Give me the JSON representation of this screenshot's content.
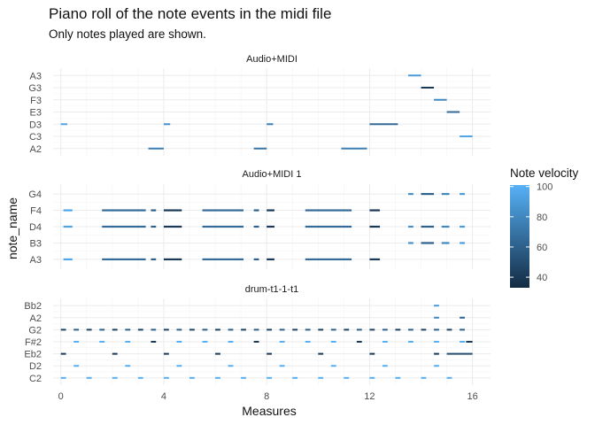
{
  "chart_data": {
    "type": "piano-roll",
    "title": "Piano roll of the note events in the midi file",
    "subtitle": "Only notes played are shown.",
    "xlabel": "Measures",
    "ylabel": "note_name",
    "xlim": [
      -0.3,
      16.7
    ],
    "xticks": [
      0,
      4,
      8,
      12,
      16
    ],
    "grid": true,
    "legend": {
      "title": "Note velocity",
      "position": "right",
      "range": [
        33,
        101
      ],
      "ticks": [
        40,
        60,
        80,
        100
      ],
      "color_low": "#132b43",
      "color_high": "#56b1f7"
    },
    "facets": [
      {
        "name": "Audio+MIDI",
        "notes": [
          "A2",
          "C3",
          "D3",
          "E3",
          "F3",
          "G3",
          "A3"
        ],
        "events": [
          {
            "note": "D3",
            "start": 0.0,
            "end": 0.25,
            "velocity": 95
          },
          {
            "note": "D3",
            "start": 4.0,
            "end": 4.25,
            "velocity": 85
          },
          {
            "note": "D3",
            "start": 8.0,
            "end": 8.25,
            "velocity": 75
          },
          {
            "note": "D3",
            "start": 12.0,
            "end": 13.1,
            "velocity": 65
          },
          {
            "note": "A2",
            "start": 3.4,
            "end": 4.0,
            "velocity": 75
          },
          {
            "note": "A2",
            "start": 7.5,
            "end": 8.0,
            "velocity": 70
          },
          {
            "note": "A2",
            "start": 10.9,
            "end": 11.9,
            "velocity": 75
          },
          {
            "note": "A3",
            "start": 13.5,
            "end": 14.0,
            "velocity": 90
          },
          {
            "note": "G3",
            "start": 14.0,
            "end": 14.5,
            "velocity": 40
          },
          {
            "note": "F3",
            "start": 14.5,
            "end": 15.0,
            "velocity": 80
          },
          {
            "note": "E3",
            "start": 15.0,
            "end": 15.5,
            "velocity": 65
          },
          {
            "note": "C3",
            "start": 15.5,
            "end": 16.0,
            "velocity": 95
          }
        ]
      },
      {
        "name": "Audio+MIDI 1",
        "notes": [
          "A3",
          "B3",
          "D4",
          "F4",
          "G4"
        ],
        "events": [
          {
            "note": "A3",
            "start": 0.1,
            "end": 0.45,
            "velocity": 95
          },
          {
            "note": "A3",
            "start": 1.6,
            "end": 3.3,
            "velocity": 65
          },
          {
            "note": "A3",
            "start": 3.5,
            "end": 3.7,
            "velocity": 60
          },
          {
            "note": "A3",
            "start": 4.0,
            "end": 4.7,
            "velocity": 40
          },
          {
            "note": "A3",
            "start": 5.5,
            "end": 7.1,
            "velocity": 65
          },
          {
            "note": "A3",
            "start": 7.5,
            "end": 7.7,
            "velocity": 60
          },
          {
            "note": "A3",
            "start": 8.0,
            "end": 8.3,
            "velocity": 40
          },
          {
            "note": "A3",
            "start": 9.5,
            "end": 11.3,
            "velocity": 65
          },
          {
            "note": "A3",
            "start": 12.0,
            "end": 12.4,
            "velocity": 40
          },
          {
            "note": "D4",
            "start": 0.1,
            "end": 0.45,
            "velocity": 95
          },
          {
            "note": "D4",
            "start": 1.6,
            "end": 3.3,
            "velocity": 65
          },
          {
            "note": "D4",
            "start": 3.5,
            "end": 3.7,
            "velocity": 60
          },
          {
            "note": "D4",
            "start": 4.0,
            "end": 4.7,
            "velocity": 40
          },
          {
            "note": "D4",
            "start": 5.5,
            "end": 7.1,
            "velocity": 65
          },
          {
            "note": "D4",
            "start": 7.5,
            "end": 7.7,
            "velocity": 60
          },
          {
            "note": "D4",
            "start": 8.0,
            "end": 8.3,
            "velocity": 40
          },
          {
            "note": "D4",
            "start": 9.5,
            "end": 11.3,
            "velocity": 65
          },
          {
            "note": "D4",
            "start": 12.0,
            "end": 12.4,
            "velocity": 40
          },
          {
            "note": "D4",
            "start": 13.5,
            "end": 13.7,
            "velocity": 85
          },
          {
            "note": "D4",
            "start": 14.0,
            "end": 14.5,
            "velocity": 60
          },
          {
            "note": "D4",
            "start": 14.8,
            "end": 15.1,
            "velocity": 80
          },
          {
            "note": "D4",
            "start": 15.5,
            "end": 15.7,
            "velocity": 90
          },
          {
            "note": "F4",
            "start": 0.1,
            "end": 0.45,
            "velocity": 95
          },
          {
            "note": "F4",
            "start": 1.6,
            "end": 3.3,
            "velocity": 65
          },
          {
            "note": "F4",
            "start": 3.5,
            "end": 3.7,
            "velocity": 60
          },
          {
            "note": "F4",
            "start": 4.0,
            "end": 4.7,
            "velocity": 40
          },
          {
            "note": "F4",
            "start": 5.5,
            "end": 7.1,
            "velocity": 65
          },
          {
            "note": "F4",
            "start": 7.5,
            "end": 7.7,
            "velocity": 60
          },
          {
            "note": "F4",
            "start": 8.0,
            "end": 8.3,
            "velocity": 40
          },
          {
            "note": "F4",
            "start": 9.5,
            "end": 11.3,
            "velocity": 65
          },
          {
            "note": "F4",
            "start": 12.0,
            "end": 12.4,
            "velocity": 40
          },
          {
            "note": "B3",
            "start": 13.5,
            "end": 13.7,
            "velocity": 85
          },
          {
            "note": "B3",
            "start": 14.0,
            "end": 14.5,
            "velocity": 60
          },
          {
            "note": "B3",
            "start": 14.8,
            "end": 15.1,
            "velocity": 80
          },
          {
            "note": "B3",
            "start": 15.5,
            "end": 15.7,
            "velocity": 90
          },
          {
            "note": "G4",
            "start": 13.5,
            "end": 13.7,
            "velocity": 85
          },
          {
            "note": "G4",
            "start": 14.0,
            "end": 14.5,
            "velocity": 60
          },
          {
            "note": "G4",
            "start": 14.8,
            "end": 15.1,
            "velocity": 80
          },
          {
            "note": "G4",
            "start": 15.5,
            "end": 15.7,
            "velocity": 90
          }
        ]
      },
      {
        "name": "drum-t1-1-t1",
        "notes": [
          "C2",
          "D2",
          "Eb2",
          "F#2",
          "G2",
          "A2",
          "Bb2"
        ],
        "events": [
          {
            "note": "C2",
            "start": 0.0,
            "end": 0.2,
            "velocity": 100
          },
          {
            "note": "C2",
            "start": 1.0,
            "end": 1.2,
            "velocity": 100
          },
          {
            "note": "C2",
            "start": 2.0,
            "end": 2.2,
            "velocity": 100
          },
          {
            "note": "C2",
            "start": 3.0,
            "end": 3.2,
            "velocity": 100
          },
          {
            "note": "C2",
            "start": 4.0,
            "end": 4.2,
            "velocity": 100
          },
          {
            "note": "C2",
            "start": 5.0,
            "end": 5.2,
            "velocity": 100
          },
          {
            "note": "C2",
            "start": 6.0,
            "end": 6.2,
            "velocity": 100
          },
          {
            "note": "C2",
            "start": 7.0,
            "end": 7.2,
            "velocity": 100
          },
          {
            "note": "C2",
            "start": 8.0,
            "end": 8.2,
            "velocity": 100
          },
          {
            "note": "C2",
            "start": 9.0,
            "end": 9.2,
            "velocity": 100
          },
          {
            "note": "C2",
            "start": 10.0,
            "end": 10.2,
            "velocity": 100
          },
          {
            "note": "C2",
            "start": 11.0,
            "end": 11.2,
            "velocity": 100
          },
          {
            "note": "C2",
            "start": 12.0,
            "end": 12.2,
            "velocity": 100
          },
          {
            "note": "C2",
            "start": 13.0,
            "end": 13.2,
            "velocity": 100
          },
          {
            "note": "C2",
            "start": 14.0,
            "end": 14.2,
            "velocity": 100
          },
          {
            "note": "C2",
            "start": 15.0,
            "end": 15.2,
            "velocity": 100
          },
          {
            "note": "D2",
            "start": 0.5,
            "end": 0.7,
            "velocity": 100
          },
          {
            "note": "D2",
            "start": 2.5,
            "end": 2.7,
            "velocity": 100
          },
          {
            "note": "D2",
            "start": 4.5,
            "end": 4.7,
            "velocity": 100
          },
          {
            "note": "D2",
            "start": 6.5,
            "end": 6.7,
            "velocity": 100
          },
          {
            "note": "D2",
            "start": 8.5,
            "end": 8.7,
            "velocity": 100
          },
          {
            "note": "D2",
            "start": 10.5,
            "end": 10.7,
            "velocity": 100
          },
          {
            "note": "D2",
            "start": 12.5,
            "end": 12.7,
            "velocity": 100
          },
          {
            "note": "D2",
            "start": 14.5,
            "end": 14.7,
            "velocity": 100
          },
          {
            "note": "Eb2",
            "start": 0.0,
            "end": 0.2,
            "velocity": 40
          },
          {
            "note": "Eb2",
            "start": 2.0,
            "end": 2.2,
            "velocity": 40
          },
          {
            "note": "Eb2",
            "start": 4.0,
            "end": 4.2,
            "velocity": 40
          },
          {
            "note": "Eb2",
            "start": 6.0,
            "end": 6.2,
            "velocity": 40
          },
          {
            "note": "Eb2",
            "start": 8.0,
            "end": 8.2,
            "velocity": 40
          },
          {
            "note": "Eb2",
            "start": 10.0,
            "end": 10.2,
            "velocity": 40
          },
          {
            "note": "Eb2",
            "start": 12.0,
            "end": 12.2,
            "velocity": 40
          },
          {
            "note": "Eb2",
            "start": 14.5,
            "end": 14.7,
            "velocity": 40
          },
          {
            "note": "Eb2",
            "start": 15.0,
            "end": 16.0,
            "velocity": 50
          },
          {
            "note": "F#2",
            "start": 0.5,
            "end": 0.7,
            "velocity": 100
          },
          {
            "note": "F#2",
            "start": 1.5,
            "end": 1.7,
            "velocity": 100
          },
          {
            "note": "F#2",
            "start": 2.5,
            "end": 2.7,
            "velocity": 100
          },
          {
            "note": "F#2",
            "start": 3.5,
            "end": 3.7,
            "velocity": 40
          },
          {
            "note": "F#2",
            "start": 4.5,
            "end": 4.7,
            "velocity": 100
          },
          {
            "note": "F#2",
            "start": 5.5,
            "end": 5.7,
            "velocity": 100
          },
          {
            "note": "F#2",
            "start": 6.5,
            "end": 6.7,
            "velocity": 100
          },
          {
            "note": "F#2",
            "start": 7.5,
            "end": 7.7,
            "velocity": 40
          },
          {
            "note": "F#2",
            "start": 8.5,
            "end": 8.7,
            "velocity": 100
          },
          {
            "note": "F#2",
            "start": 9.5,
            "end": 9.7,
            "velocity": 100
          },
          {
            "note": "F#2",
            "start": 10.5,
            "end": 10.7,
            "velocity": 100
          },
          {
            "note": "F#2",
            "start": 11.5,
            "end": 11.7,
            "velocity": 40
          },
          {
            "note": "F#2",
            "start": 12.5,
            "end": 12.7,
            "velocity": 100
          },
          {
            "note": "F#2",
            "start": 13.5,
            "end": 13.7,
            "velocity": 100
          },
          {
            "note": "F#2",
            "start": 14.5,
            "end": 14.7,
            "velocity": 100
          },
          {
            "note": "F#2",
            "start": 15.5,
            "end": 15.7,
            "velocity": 100
          },
          {
            "note": "F#2",
            "start": 15.75,
            "end": 16.0,
            "velocity": 40
          },
          {
            "note": "G2",
            "start": 0.0,
            "end": 0.2,
            "velocity": 45
          },
          {
            "note": "G2",
            "start": 0.5,
            "end": 0.7,
            "velocity": 60
          },
          {
            "note": "G2",
            "start": 1.0,
            "end": 1.2,
            "velocity": 45
          },
          {
            "note": "G2",
            "start": 1.5,
            "end": 1.7,
            "velocity": 60
          },
          {
            "note": "G2",
            "start": 2.0,
            "end": 2.2,
            "velocity": 45
          },
          {
            "note": "G2",
            "start": 2.5,
            "end": 2.7,
            "velocity": 60
          },
          {
            "note": "G2",
            "start": 3.0,
            "end": 3.2,
            "velocity": 45
          },
          {
            "note": "G2",
            "start": 3.5,
            "end": 3.7,
            "velocity": 60
          },
          {
            "note": "G2",
            "start": 4.0,
            "end": 4.2,
            "velocity": 45
          },
          {
            "note": "G2",
            "start": 4.5,
            "end": 4.7,
            "velocity": 60
          },
          {
            "note": "G2",
            "start": 5.0,
            "end": 5.2,
            "velocity": 45
          },
          {
            "note": "G2",
            "start": 5.5,
            "end": 5.7,
            "velocity": 60
          },
          {
            "note": "G2",
            "start": 6.0,
            "end": 6.2,
            "velocity": 45
          },
          {
            "note": "G2",
            "start": 6.5,
            "end": 6.7,
            "velocity": 60
          },
          {
            "note": "G2",
            "start": 7.0,
            "end": 7.2,
            "velocity": 45
          },
          {
            "note": "G2",
            "start": 7.5,
            "end": 7.7,
            "velocity": 60
          },
          {
            "note": "G2",
            "start": 8.0,
            "end": 8.2,
            "velocity": 45
          },
          {
            "note": "G2",
            "start": 8.5,
            "end": 8.7,
            "velocity": 60
          },
          {
            "note": "G2",
            "start": 9.0,
            "end": 9.2,
            "velocity": 45
          },
          {
            "note": "G2",
            "start": 9.5,
            "end": 9.7,
            "velocity": 60
          },
          {
            "note": "G2",
            "start": 10.0,
            "end": 10.2,
            "velocity": 45
          },
          {
            "note": "G2",
            "start": 10.5,
            "end": 10.7,
            "velocity": 60
          },
          {
            "note": "G2",
            "start": 11.0,
            "end": 11.2,
            "velocity": 45
          },
          {
            "note": "G2",
            "start": 11.5,
            "end": 11.7,
            "velocity": 60
          },
          {
            "note": "G2",
            "start": 12.0,
            "end": 12.2,
            "velocity": 45
          },
          {
            "note": "G2",
            "start": 12.5,
            "end": 12.7,
            "velocity": 60
          },
          {
            "note": "G2",
            "start": 13.0,
            "end": 13.2,
            "velocity": 45
          },
          {
            "note": "G2",
            "start": 13.5,
            "end": 13.7,
            "velocity": 60
          },
          {
            "note": "G2",
            "start": 14.0,
            "end": 14.2,
            "velocity": 45
          },
          {
            "note": "G2",
            "start": 14.5,
            "end": 14.7,
            "velocity": 60
          },
          {
            "note": "G2",
            "start": 15.0,
            "end": 15.2,
            "velocity": 45
          },
          {
            "note": "G2",
            "start": 15.5,
            "end": 15.7,
            "velocity": 60
          },
          {
            "note": "A2",
            "start": 14.5,
            "end": 14.7,
            "velocity": 80
          },
          {
            "note": "A2",
            "start": 15.5,
            "end": 15.7,
            "velocity": 60
          },
          {
            "note": "Bb2",
            "start": 14.5,
            "end": 14.7,
            "velocity": 90
          }
        ]
      }
    ]
  }
}
